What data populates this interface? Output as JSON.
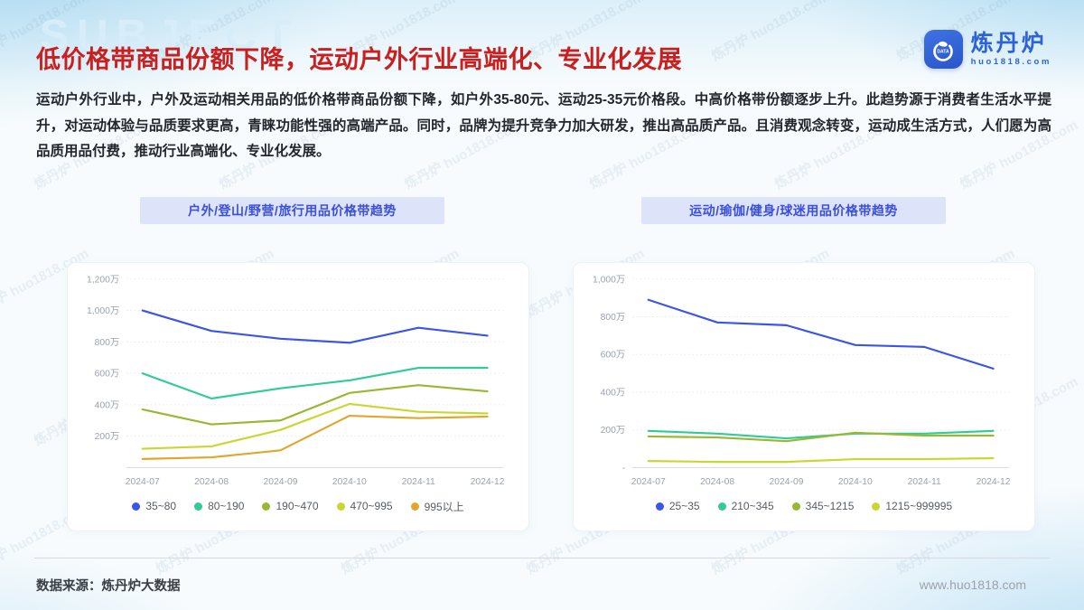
{
  "page": {
    "subject_watermark": "SUBJECT",
    "title": "低价格带商品份额下降，运动户外行业高端化、专业化发展",
    "paragraph": "运动户外行业中，户外及运动相关用品的低价格带商品份额下降，如户外35-80元、运动25-35元价格段。中高价格带份额逐步上升。此趋势源于消费者生活水平提升，对运动体验与品质要求更高，青睐功能性强的高端产品。同时，品牌为提升竞争力加大研发，推出高品质产品。且消费观念转变，运动成生活方式，人们愿为高品质用品付费，推动行业高端化、专业化发展。"
  },
  "colors": {
    "title_red": "#c9201f",
    "brand_blue": "#2d63d6",
    "header_bar_bg": "#dde3f8",
    "header_bar_text": "#3a50dd",
    "series_palette": [
      "#3b55e6",
      "#30cb96",
      "#96b931",
      "#c9d732",
      "#e0a62e"
    ]
  },
  "logo": {
    "name": "炼丹炉",
    "domain": "huo1818.com",
    "icon": "furnace-swirl-icon",
    "icon_label": "DATA"
  },
  "watermark": {
    "text": "炼丹炉 huo1818.com"
  },
  "footer": {
    "source": "数据来源：炼丹炉大数据",
    "website": "www.huo1818.com"
  },
  "chart_data": [
    {
      "type": "line",
      "title": "户外/登山/野营/旅行用品价格带趋势",
      "unit": "万",
      "categories": [
        "2024-07",
        "2024-08",
        "2024-09",
        "2024-10",
        "2024-11",
        "2024-12"
      ],
      "ylim": [
        0,
        1200
      ],
      "ytick_values": [
        0,
        200,
        400,
        600,
        800,
        1000,
        1200
      ],
      "ytick_labels": [
        "",
        "200万",
        "400万",
        "600万",
        "800万",
        "1,000万",
        "1,200万"
      ],
      "grid": true,
      "legend_position": "bottom",
      "series": [
        {
          "name": "35~80",
          "color": "#3b55e6",
          "values": [
            1000,
            870,
            820,
            795,
            890,
            840
          ]
        },
        {
          "name": "80~190",
          "color": "#30cb96",
          "values": [
            600,
            440,
            505,
            555,
            635,
            635
          ]
        },
        {
          "name": "190~470",
          "color": "#96b931",
          "values": [
            370,
            275,
            300,
            475,
            525,
            485
          ]
        },
        {
          "name": "470~995",
          "color": "#c9d732",
          "values": [
            120,
            135,
            240,
            405,
            355,
            345
          ]
        },
        {
          "name": "995以上",
          "color": "#e0a62e",
          "values": [
            55,
            65,
            110,
            330,
            315,
            325
          ]
        }
      ]
    },
    {
      "type": "line",
      "title": "运动/瑜伽/健身/球迷用品价格带趋势",
      "unit": "万",
      "categories": [
        "2024-07",
        "2024-08",
        "2024-09",
        "2024-10",
        "2024-11",
        "2024-12"
      ],
      "ylim": [
        0,
        1000
      ],
      "ytick_values": [
        0,
        200,
        400,
        600,
        800,
        1000
      ],
      "ytick_labels": [
        "-",
        "200万",
        "400万",
        "600万",
        "800万",
        "1,000万"
      ],
      "grid": true,
      "legend_position": "bottom",
      "series": [
        {
          "name": "25~35",
          "color": "#3b55e6",
          "values": [
            890,
            770,
            755,
            650,
            640,
            525
          ]
        },
        {
          "name": "210~345",
          "color": "#30cb96",
          "values": [
            195,
            180,
            155,
            180,
            180,
            195
          ]
        },
        {
          "name": "345~1215",
          "color": "#96b931",
          "values": [
            165,
            160,
            140,
            185,
            170,
            170
          ]
        },
        {
          "name": "1215~999995",
          "color": "#c9d732",
          "values": [
            35,
            30,
            30,
            45,
            45,
            50
          ]
        }
      ]
    }
  ]
}
